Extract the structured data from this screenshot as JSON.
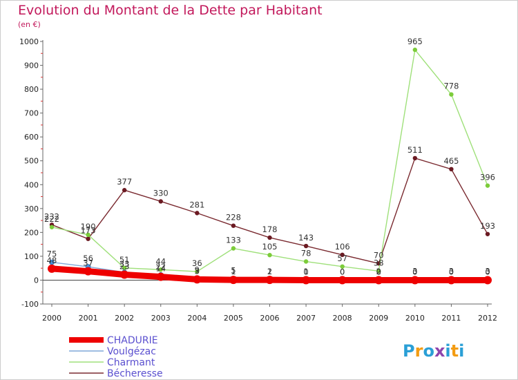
{
  "chart_data": {
    "type": "line",
    "title": "Evolution du Montant de la Dette par Habitant",
    "subtitle": "(en €)",
    "x": [
      "2000",
      "2001",
      "2002",
      "2003",
      "2004",
      "2005",
      "2006",
      "2007",
      "2008",
      "2009",
      "2010",
      "2011",
      "2012"
    ],
    "ylim": [
      -100,
      1000
    ],
    "yticks": [
      -100,
      0,
      100,
      200,
      300,
      400,
      500,
      600,
      700,
      800,
      900,
      1000
    ],
    "grid": false,
    "legend_position": "bottom-left",
    "series": [
      {
        "name": "CHADURIE",
        "color": "#ee0000",
        "marker": "#ee0000",
        "values": [
          48,
          37,
          23,
          14,
          3,
          1,
          1,
          0,
          0,
          0,
          0,
          0,
          0
        ]
      },
      {
        "name": "Voulgézac",
        "color": "#7fa7d8",
        "marker": "#4a90d9",
        "values": [
          75,
          56,
          33,
          22,
          9,
          5,
          2,
          1,
          0,
          2,
          3,
          3,
          3
        ]
      },
      {
        "name": "Charmant",
        "color": "#9fe07a",
        "marker": "#7ccc3a",
        "values": [
          222,
          190,
          51,
          44,
          36,
          133,
          105,
          78,
          57,
          38,
          965,
          778,
          396
        ]
      },
      {
        "name": "Bécheresse",
        "color": "#7a2a30",
        "marker": "#6b1a22",
        "values": [
          232,
          173,
          377,
          330,
          281,
          228,
          178,
          143,
          106,
          70,
          511,
          465,
          193
        ]
      }
    ],
    "labels": [
      {
        "series": 0,
        "values": [
          "48",
          "37",
          "23",
          "14",
          "3",
          "1",
          "1",
          "0",
          "0",
          "0",
          "0",
          "0",
          "0"
        ]
      },
      {
        "series": 1,
        "values": [
          "75",
          "56",
          "33",
          "22",
          "9",
          "5",
          "2",
          "1",
          "0",
          "2",
          "3",
          "3",
          "3"
        ]
      },
      {
        "series": 2,
        "values": [
          "222",
          "190",
          "51",
          "44",
          "36",
          "133",
          "105",
          "78",
          "57",
          "38",
          "965",
          "778",
          "396"
        ]
      },
      {
        "series": 3,
        "values": [
          "232",
          "173",
          "377",
          "330",
          "281",
          "228",
          "178",
          "143",
          "106",
          "70",
          "511",
          "465",
          "193"
        ]
      }
    ]
  },
  "logo": {
    "text": "Proxiti",
    "letters": [
      "P",
      "r",
      "o",
      "x",
      "i",
      "t",
      "i"
    ],
    "colors": [
      "#2a9fd6",
      "#f39c12",
      "#2a9fd6",
      "#8e44ad",
      "#2a9fd6",
      "#f39c12",
      "#2a9fd6"
    ]
  }
}
